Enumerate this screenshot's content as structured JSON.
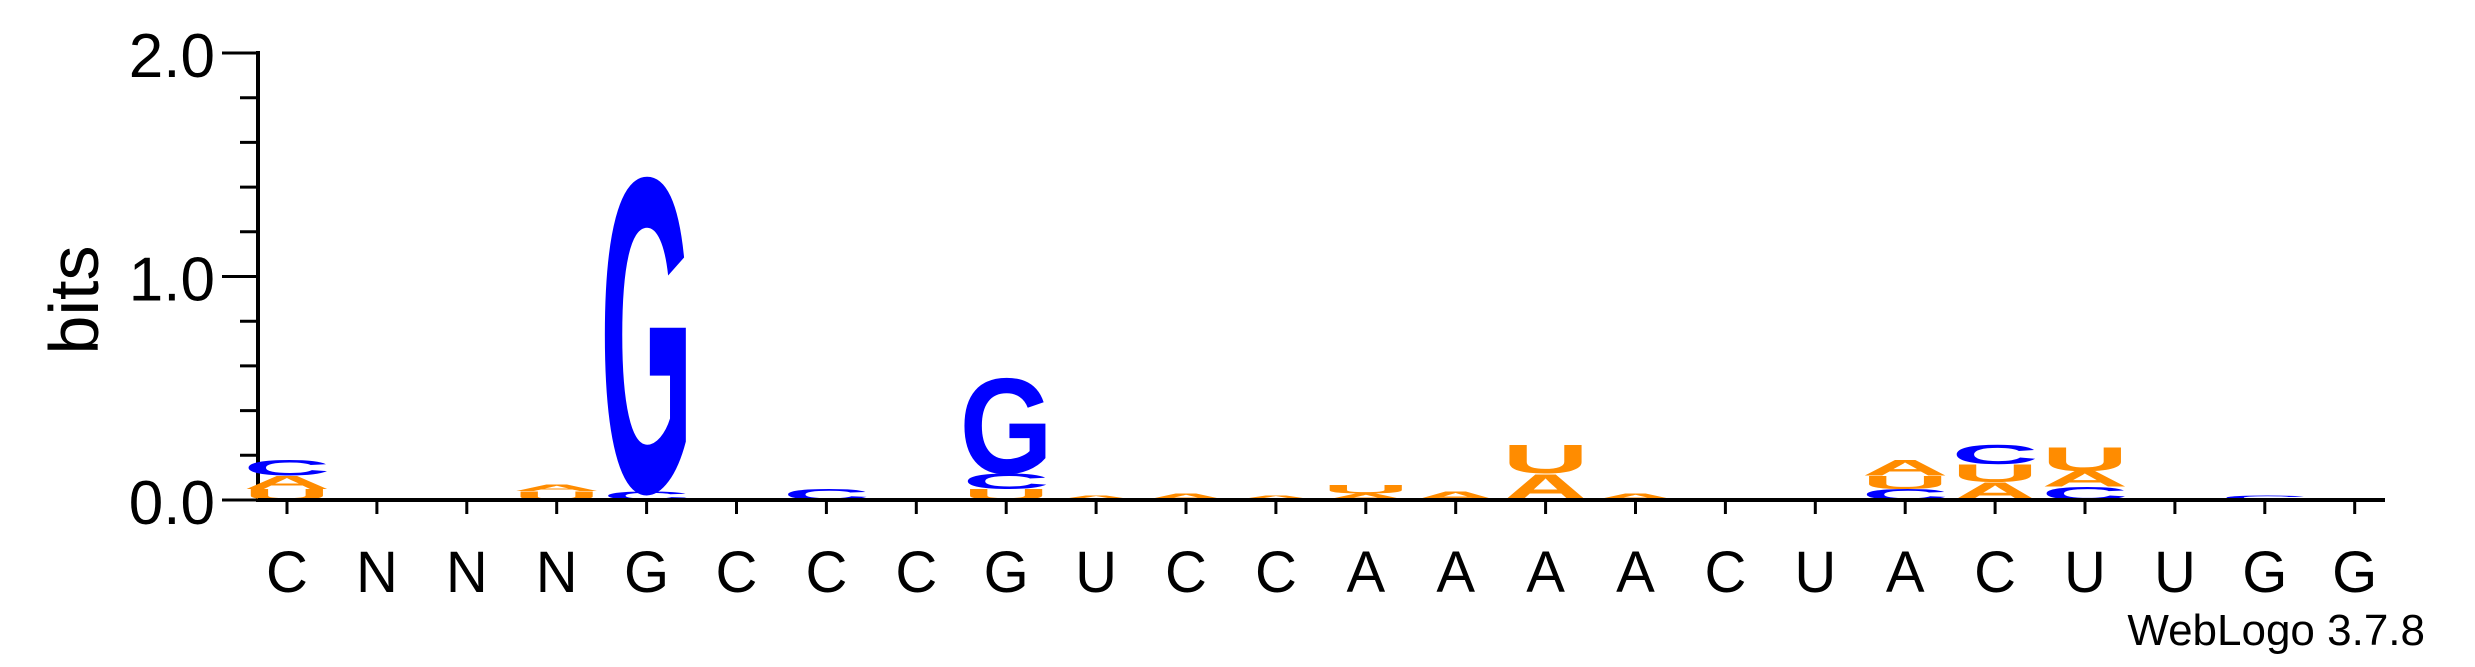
{
  "chart_data": {
    "type": "sequence_logo",
    "title": "",
    "xlabel": "",
    "ylabel": "bits",
    "ylim": [
      0,
      2.0
    ],
    "yticks": [
      "0.0",
      "1.0",
      "2.0"
    ],
    "ytick_values": [
      0,
      1,
      2
    ],
    "grid": false,
    "colors": {
      "G": "#0000ff",
      "C": "#0000ff",
      "A": "#ff8c00",
      "U": "#ff8c00"
    },
    "positions": [
      {
        "label": "C",
        "stack": [
          {
            "letter": "U",
            "bits": 0.05
          },
          {
            "letter": "A",
            "bits": 0.06
          },
          {
            "letter": "C",
            "bits": 0.07
          }
        ]
      },
      {
        "label": "N",
        "stack": []
      },
      {
        "label": "N",
        "stack": []
      },
      {
        "label": "N",
        "stack": [
          {
            "letter": "U",
            "bits": 0.04
          },
          {
            "letter": "A",
            "bits": 0.03
          }
        ]
      },
      {
        "label": "G",
        "stack": [
          {
            "letter": "C",
            "bits": 0.04
          },
          {
            "letter": "G",
            "bits": 1.45
          }
        ]
      },
      {
        "label": "C",
        "stack": []
      },
      {
        "label": "C",
        "stack": [
          {
            "letter": "C",
            "bits": 0.05
          }
        ]
      },
      {
        "label": "C",
        "stack": []
      },
      {
        "label": "G",
        "stack": [
          {
            "letter": "U",
            "bits": 0.05
          },
          {
            "letter": "C",
            "bits": 0.07
          },
          {
            "letter": "G",
            "bits": 0.44
          }
        ]
      },
      {
        "label": "U",
        "stack": [
          {
            "letter": "A",
            "bits": 0.02
          }
        ]
      },
      {
        "label": "C",
        "stack": [
          {
            "letter": "A",
            "bits": 0.03
          }
        ]
      },
      {
        "label": "C",
        "stack": [
          {
            "letter": "A",
            "bits": 0.02
          }
        ]
      },
      {
        "label": "A",
        "stack": [
          {
            "letter": "A",
            "bits": 0.03
          },
          {
            "letter": "U",
            "bits": 0.04
          }
        ]
      },
      {
        "label": "A",
        "stack": [
          {
            "letter": "A",
            "bits": 0.04
          }
        ]
      },
      {
        "label": "A",
        "stack": [
          {
            "letter": "A",
            "bits": 0.12
          },
          {
            "letter": "U",
            "bits": 0.13
          }
        ]
      },
      {
        "label": "A",
        "stack": [
          {
            "letter": "A",
            "bits": 0.03
          }
        ]
      },
      {
        "label": "C",
        "stack": []
      },
      {
        "label": "U",
        "stack": []
      },
      {
        "label": "A",
        "stack": [
          {
            "letter": "C",
            "bits": 0.05
          },
          {
            "letter": "U",
            "bits": 0.06
          },
          {
            "letter": "A",
            "bits": 0.07
          }
        ]
      },
      {
        "label": "C",
        "stack": [
          {
            "letter": "A",
            "bits": 0.08
          },
          {
            "letter": "U",
            "bits": 0.08
          },
          {
            "letter": "C",
            "bits": 0.09
          }
        ]
      },
      {
        "label": "U",
        "stack": [
          {
            "letter": "C",
            "bits": 0.06
          },
          {
            "letter": "A",
            "bits": 0.07
          },
          {
            "letter": "U",
            "bits": 0.11
          }
        ]
      },
      {
        "label": "U",
        "stack": [
          {
            "letter": "A",
            "bits": 0.01
          }
        ]
      },
      {
        "label": "G",
        "stack": [
          {
            "letter": "C",
            "bits": 0.02
          }
        ]
      },
      {
        "label": "G",
        "stack": []
      }
    ]
  },
  "credit": "WebLogo 3.7.8"
}
